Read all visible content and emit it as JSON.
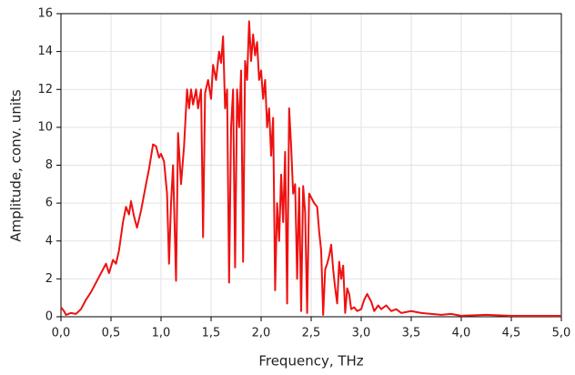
{
  "chart_data": {
    "type": "line",
    "x_label": "Frequency, THz",
    "y_label": "Amplitude, conv. units",
    "x": [
      0.0,
      0.03,
      0.05,
      0.1,
      0.15,
      0.2,
      0.25,
      0.3,
      0.35,
      0.4,
      0.45,
      0.48,
      0.52,
      0.55,
      0.58,
      0.62,
      0.65,
      0.68,
      0.7,
      0.73,
      0.76,
      0.8,
      0.85,
      0.88,
      0.92,
      0.95,
      0.98,
      1.0,
      1.03,
      1.06,
      1.08,
      1.1,
      1.12,
      1.15,
      1.17,
      1.2,
      1.23,
      1.26,
      1.28,
      1.3,
      1.32,
      1.35,
      1.37,
      1.4,
      1.42,
      1.44,
      1.47,
      1.5,
      1.52,
      1.55,
      1.58,
      1.6,
      1.62,
      1.64,
      1.66,
      1.68,
      1.7,
      1.72,
      1.74,
      1.76,
      1.78,
      1.8,
      1.82,
      1.84,
      1.86,
      1.88,
      1.9,
      1.92,
      1.94,
      1.96,
      1.98,
      2.0,
      2.02,
      2.04,
      2.06,
      2.08,
      2.1,
      2.12,
      2.14,
      2.16,
      2.18,
      2.2,
      2.22,
      2.24,
      2.26,
      2.28,
      2.3,
      2.32,
      2.34,
      2.36,
      2.38,
      2.4,
      2.42,
      2.44,
      2.46,
      2.48,
      2.5,
      2.53,
      2.56,
      2.58,
      2.6,
      2.62,
      2.64,
      2.66,
      2.68,
      2.7,
      2.72,
      2.74,
      2.76,
      2.78,
      2.8,
      2.82,
      2.84,
      2.86,
      2.88,
      2.9,
      2.93,
      2.96,
      3.0,
      3.03,
      3.06,
      3.1,
      3.13,
      3.17,
      3.2,
      3.25,
      3.3,
      3.35,
      3.4,
      3.5,
      3.6,
      3.7,
      3.8,
      3.9,
      4.0,
      4.25,
      4.5,
      4.75,
      5.0
    ],
    "series": [
      {
        "color": "#ee1111",
        "values": [
          0.5,
          0.3,
          0.1,
          0.2,
          0.15,
          0.4,
          0.9,
          1.3,
          1.8,
          2.3,
          2.8,
          2.3,
          3.0,
          2.8,
          3.5,
          5.0,
          5.8,
          5.4,
          6.1,
          5.3,
          4.7,
          5.6,
          7.0,
          7.8,
          9.1,
          9.0,
          8.4,
          8.6,
          8.2,
          6.5,
          2.8,
          6.0,
          8.0,
          1.9,
          9.7,
          7.0,
          9.0,
          12.0,
          11.0,
          12.0,
          11.2,
          12.0,
          11.0,
          12.0,
          4.2,
          11.8,
          12.5,
          11.5,
          13.3,
          12.5,
          14.0,
          13.4,
          14.8,
          11.0,
          12.0,
          1.8,
          10.0,
          12.0,
          2.6,
          12.0,
          10.0,
          13.0,
          2.9,
          13.5,
          12.5,
          15.6,
          13.5,
          14.9,
          13.8,
          14.5,
          12.5,
          13.0,
          11.5,
          12.5,
          10.0,
          11.0,
          8.5,
          10.5,
          1.4,
          6.0,
          4.0,
          7.5,
          5.0,
          8.7,
          0.7,
          11.0,
          9.0,
          6.5,
          7.0,
          2.0,
          6.8,
          0.3,
          6.9,
          5.5,
          0.2,
          6.5,
          6.3,
          6.0,
          5.8,
          4.5,
          3.5,
          0.1,
          2.5,
          2.8,
          3.2,
          3.8,
          2.5,
          1.5,
          0.7,
          2.9,
          2.0,
          2.7,
          0.2,
          1.5,
          1.2,
          0.4,
          0.5,
          0.3,
          0.4,
          0.9,
          1.2,
          0.8,
          0.3,
          0.6,
          0.4,
          0.6,
          0.3,
          0.4,
          0.2,
          0.3,
          0.2,
          0.15,
          0.1,
          0.15,
          0.05,
          0.1,
          0.05,
          0.05,
          0.05
        ]
      }
    ],
    "xlim": [
      0,
      5
    ],
    "ylim": [
      0,
      16
    ],
    "xticks": [
      {
        "value": 0,
        "label": "0,0"
      },
      {
        "value": 0.5,
        "label": "0,5"
      },
      {
        "value": 1,
        "label": "1,0"
      },
      {
        "value": 1.5,
        "label": "1,5"
      },
      {
        "value": 2,
        "label": "2,0"
      },
      {
        "value": 2.5,
        "label": "2,5"
      },
      {
        "value": 3,
        "label": "3,0"
      },
      {
        "value": 3.5,
        "label": "3,5"
      },
      {
        "value": 4,
        "label": "4,0"
      },
      {
        "value": 4.5,
        "label": "4,5"
      },
      {
        "value": 5,
        "label": "5,0"
      }
    ],
    "yticks": [
      0,
      2,
      4,
      6,
      8,
      10,
      12,
      14,
      16
    ],
    "grid": true
  }
}
